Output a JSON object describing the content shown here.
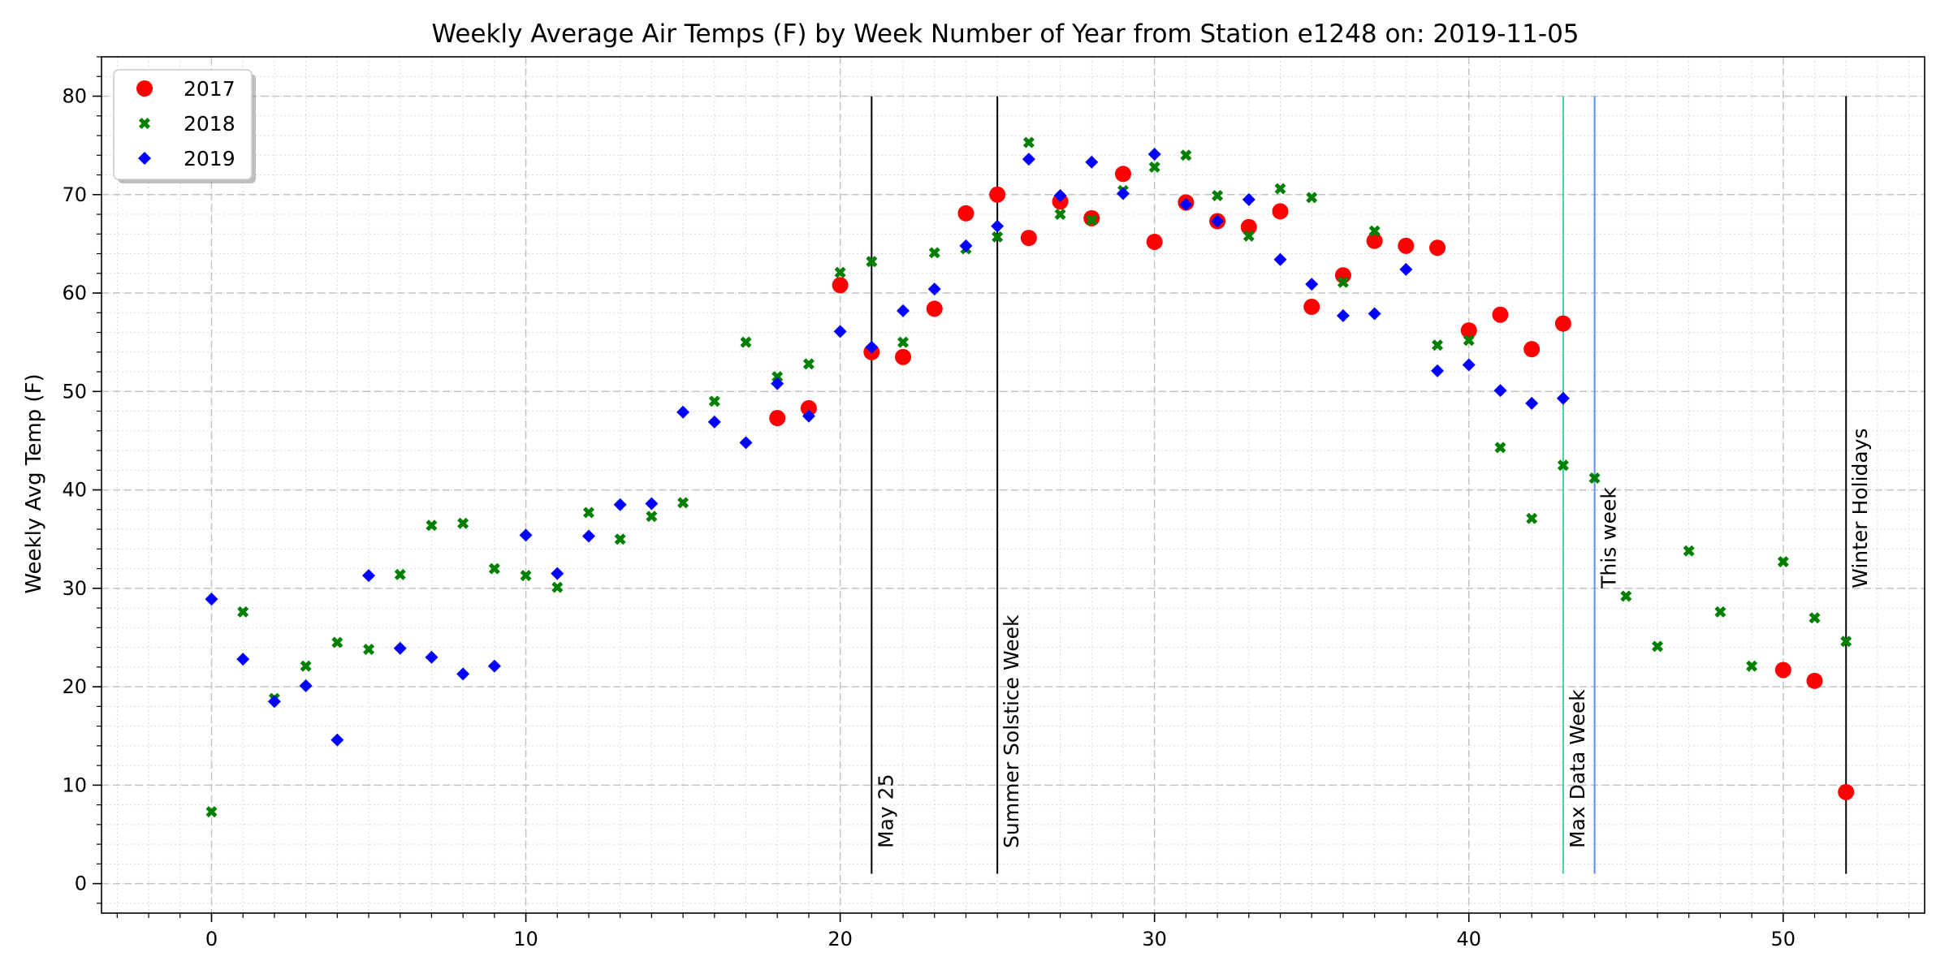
{
  "chart_data": {
    "type": "scatter",
    "title": "Weekly Average Air Temps (F) by Week Number of Year from Station e1248 on: 2019-11-05",
    "xlabel": "",
    "ylabel": "Weekly Avg Temp (F)",
    "xlim": [
      -3.5,
      54.5
    ],
    "ylim": [
      -3,
      84
    ],
    "xticks": [
      0,
      10,
      20,
      30,
      40,
      50
    ],
    "yticks": [
      0,
      10,
      20,
      30,
      40,
      50,
      60,
      70,
      80
    ],
    "grid": true,
    "legend_position": "top-left",
    "series": [
      {
        "name": "2017",
        "marker": "circle",
        "color": "#ff0000",
        "points": [
          [
            18,
            47.3
          ],
          [
            19,
            48.3
          ],
          [
            20,
            60.8
          ],
          [
            21,
            54.0
          ],
          [
            22,
            53.5
          ],
          [
            23,
            58.4
          ],
          [
            24,
            68.1
          ],
          [
            25,
            70.0
          ],
          [
            26,
            65.6
          ],
          [
            27,
            69.3
          ],
          [
            28,
            67.6
          ],
          [
            29,
            72.1
          ],
          [
            30,
            65.2
          ],
          [
            31,
            69.2
          ],
          [
            32,
            67.3
          ],
          [
            33,
            66.7
          ],
          [
            34,
            68.3
          ],
          [
            35,
            58.6
          ],
          [
            36,
            61.8
          ],
          [
            37,
            65.3
          ],
          [
            38,
            64.8
          ],
          [
            39,
            64.6
          ],
          [
            40,
            56.2
          ],
          [
            41,
            57.8
          ],
          [
            42,
            54.3
          ],
          [
            43,
            56.9
          ],
          [
            50,
            21.7
          ],
          [
            51,
            20.6
          ],
          [
            52,
            9.3
          ]
        ]
      },
      {
        "name": "2018",
        "marker": "x",
        "color": "#008000",
        "points": [
          [
            0,
            7.3
          ],
          [
            1,
            27.6
          ],
          [
            2,
            18.8
          ],
          [
            3,
            22.1
          ],
          [
            4,
            24.5
          ],
          [
            5,
            23.8
          ],
          [
            6,
            31.4
          ],
          [
            7,
            36.4
          ],
          [
            8,
            36.6
          ],
          [
            9,
            32.0
          ],
          [
            10,
            31.3
          ],
          [
            11,
            30.1
          ],
          [
            12,
            37.7
          ],
          [
            13,
            35.0
          ],
          [
            14,
            37.3
          ],
          [
            15,
            38.7
          ],
          [
            16,
            49.0
          ],
          [
            17,
            55.0
          ],
          [
            18,
            51.5
          ],
          [
            19,
            52.8
          ],
          [
            20,
            62.1
          ],
          [
            21,
            63.2
          ],
          [
            22,
            55.0
          ],
          [
            23,
            64.1
          ],
          [
            24,
            64.5
          ],
          [
            25,
            65.7
          ],
          [
            26,
            75.3
          ],
          [
            27,
            68.0
          ],
          [
            28,
            67.4
          ],
          [
            29,
            70.4
          ],
          [
            30,
            72.8
          ],
          [
            31,
            74.0
          ],
          [
            32,
            69.9
          ],
          [
            33,
            65.8
          ],
          [
            34,
            70.6
          ],
          [
            35,
            69.7
          ],
          [
            36,
            61.1
          ],
          [
            37,
            66.3
          ],
          [
            39,
            54.7
          ],
          [
            40,
            55.2
          ],
          [
            41,
            44.3
          ],
          [
            42,
            37.1
          ],
          [
            43,
            42.5
          ],
          [
            44,
            41.2
          ],
          [
            45,
            29.2
          ],
          [
            46,
            24.1
          ],
          [
            47,
            33.8
          ],
          [
            48,
            27.6
          ],
          [
            49,
            22.1
          ],
          [
            50,
            32.7
          ],
          [
            51,
            27.0
          ],
          [
            52,
            24.6
          ]
        ]
      },
      {
        "name": "2019",
        "marker": "diamond",
        "color": "#0000ff",
        "points": [
          [
            0,
            28.9
          ],
          [
            1,
            22.8
          ],
          [
            2,
            18.5
          ],
          [
            3,
            20.1
          ],
          [
            4,
            14.6
          ],
          [
            5,
            31.3
          ],
          [
            6,
            23.9
          ],
          [
            7,
            23.0
          ],
          [
            8,
            21.3
          ],
          [
            9,
            22.1
          ],
          [
            10,
            35.4
          ],
          [
            11,
            31.5
          ],
          [
            12,
            35.3
          ],
          [
            13,
            38.5
          ],
          [
            14,
            38.6
          ],
          [
            15,
            47.9
          ],
          [
            16,
            46.9
          ],
          [
            17,
            44.8
          ],
          [
            18,
            50.8
          ],
          [
            19,
            47.5
          ],
          [
            20,
            56.1
          ],
          [
            21,
            54.5
          ],
          [
            22,
            58.2
          ],
          [
            23,
            60.4
          ],
          [
            24,
            64.8
          ],
          [
            25,
            66.8
          ],
          [
            26,
            73.6
          ],
          [
            27,
            69.9
          ],
          [
            28,
            73.3
          ],
          [
            29,
            70.1
          ],
          [
            30,
            74.1
          ],
          [
            31,
            69.0
          ],
          [
            32,
            67.3
          ],
          [
            33,
            69.5
          ],
          [
            34,
            63.4
          ],
          [
            35,
            60.9
          ],
          [
            36,
            57.7
          ],
          [
            37,
            57.9
          ],
          [
            38,
            62.4
          ],
          [
            39,
            52.1
          ],
          [
            40,
            52.7
          ],
          [
            41,
            50.1
          ],
          [
            42,
            48.8
          ],
          [
            43,
            49.3
          ]
        ]
      }
    ],
    "vlines": [
      {
        "x": 21,
        "label": "May 25",
        "color": "#000000"
      },
      {
        "x": 25,
        "label": "Summer Solstice Week",
        "color": "#000000"
      },
      {
        "x": 43,
        "label": "Max Data Week",
        "color": "#3fd0a0"
      },
      {
        "x": 44,
        "label": "This week",
        "color": "#5b8ef0"
      },
      {
        "x": 52,
        "label": "Winter Holidays",
        "color": "#000000"
      }
    ]
  }
}
